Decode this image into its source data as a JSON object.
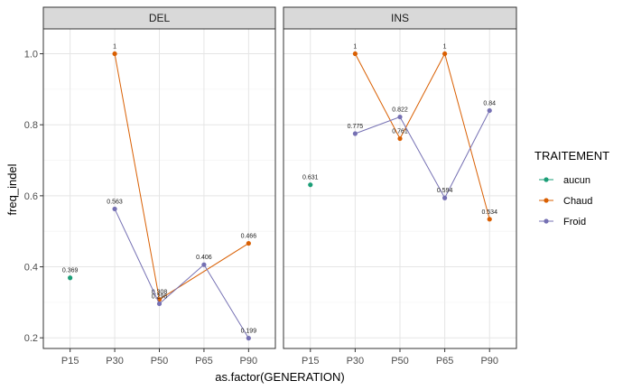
{
  "chart_data": {
    "type": "line",
    "panel_type": "faceted-line-with-points",
    "facets": [
      "DEL",
      "INS"
    ],
    "categories": [
      "P15",
      "P30",
      "P50",
      "P65",
      "P90"
    ],
    "xlabel": "as.factor(GENERATION)",
    "ylabel": "freq_indel",
    "ylim": [
      0.17,
      1.07
    ],
    "yticks": [
      0.2,
      0.4,
      0.6,
      0.8,
      1.0
    ],
    "ytick_labels": [
      "0.2",
      "0.4",
      "0.6",
      "0.8",
      "1.0"
    ],
    "grid": true,
    "legend": {
      "title": "TRAITEMENT",
      "position": "right",
      "entries": [
        "aucun",
        "Chaud",
        "Froid"
      ]
    },
    "series": [
      {
        "name": "aucun",
        "color": "#1B9E77",
        "panels": {
          "DEL": [
            {
              "x": "P15",
              "y": 0.369,
              "label": "0.369"
            }
          ],
          "INS": [
            {
              "x": "P15",
              "y": 0.631,
              "label": "0.631"
            }
          ]
        }
      },
      {
        "name": "Chaud",
        "color": "#D95F02",
        "panels": {
          "DEL": [
            {
              "x": "P30",
              "y": 1.0,
              "label": "1"
            },
            {
              "x": "P50",
              "y": 0.308,
              "label": "0.308"
            },
            {
              "x": "P90",
              "y": 0.466,
              "label": "0.466"
            }
          ],
          "INS": [
            {
              "x": "P30",
              "y": 1.0,
              "label": "1"
            },
            {
              "x": "P50",
              "y": 0.761,
              "label": "0.761"
            },
            {
              "x": "P65",
              "y": 1.0,
              "label": "1"
            },
            {
              "x": "P90",
              "y": 0.534,
              "label": "0.534"
            }
          ]
        }
      },
      {
        "name": "Froid",
        "color": "#7570B3",
        "panels": {
          "DEL": [
            {
              "x": "P30",
              "y": 0.563,
              "label": "0.563"
            },
            {
              "x": "P50",
              "y": 0.296,
              "label": "0.296"
            },
            {
              "x": "P65",
              "y": 0.406,
              "label": "0.406"
            },
            {
              "x": "P90",
              "y": 0.199,
              "label": "0.199"
            }
          ],
          "INS": [
            {
              "x": "P30",
              "y": 0.775,
              "label": "0.775"
            },
            {
              "x": "P50",
              "y": 0.822,
              "label": "0.822"
            },
            {
              "x": "P65",
              "y": 0.594,
              "label": "0.594"
            },
            {
              "x": "P90",
              "y": 0.84,
              "label": "0.84"
            }
          ]
        }
      }
    ]
  }
}
